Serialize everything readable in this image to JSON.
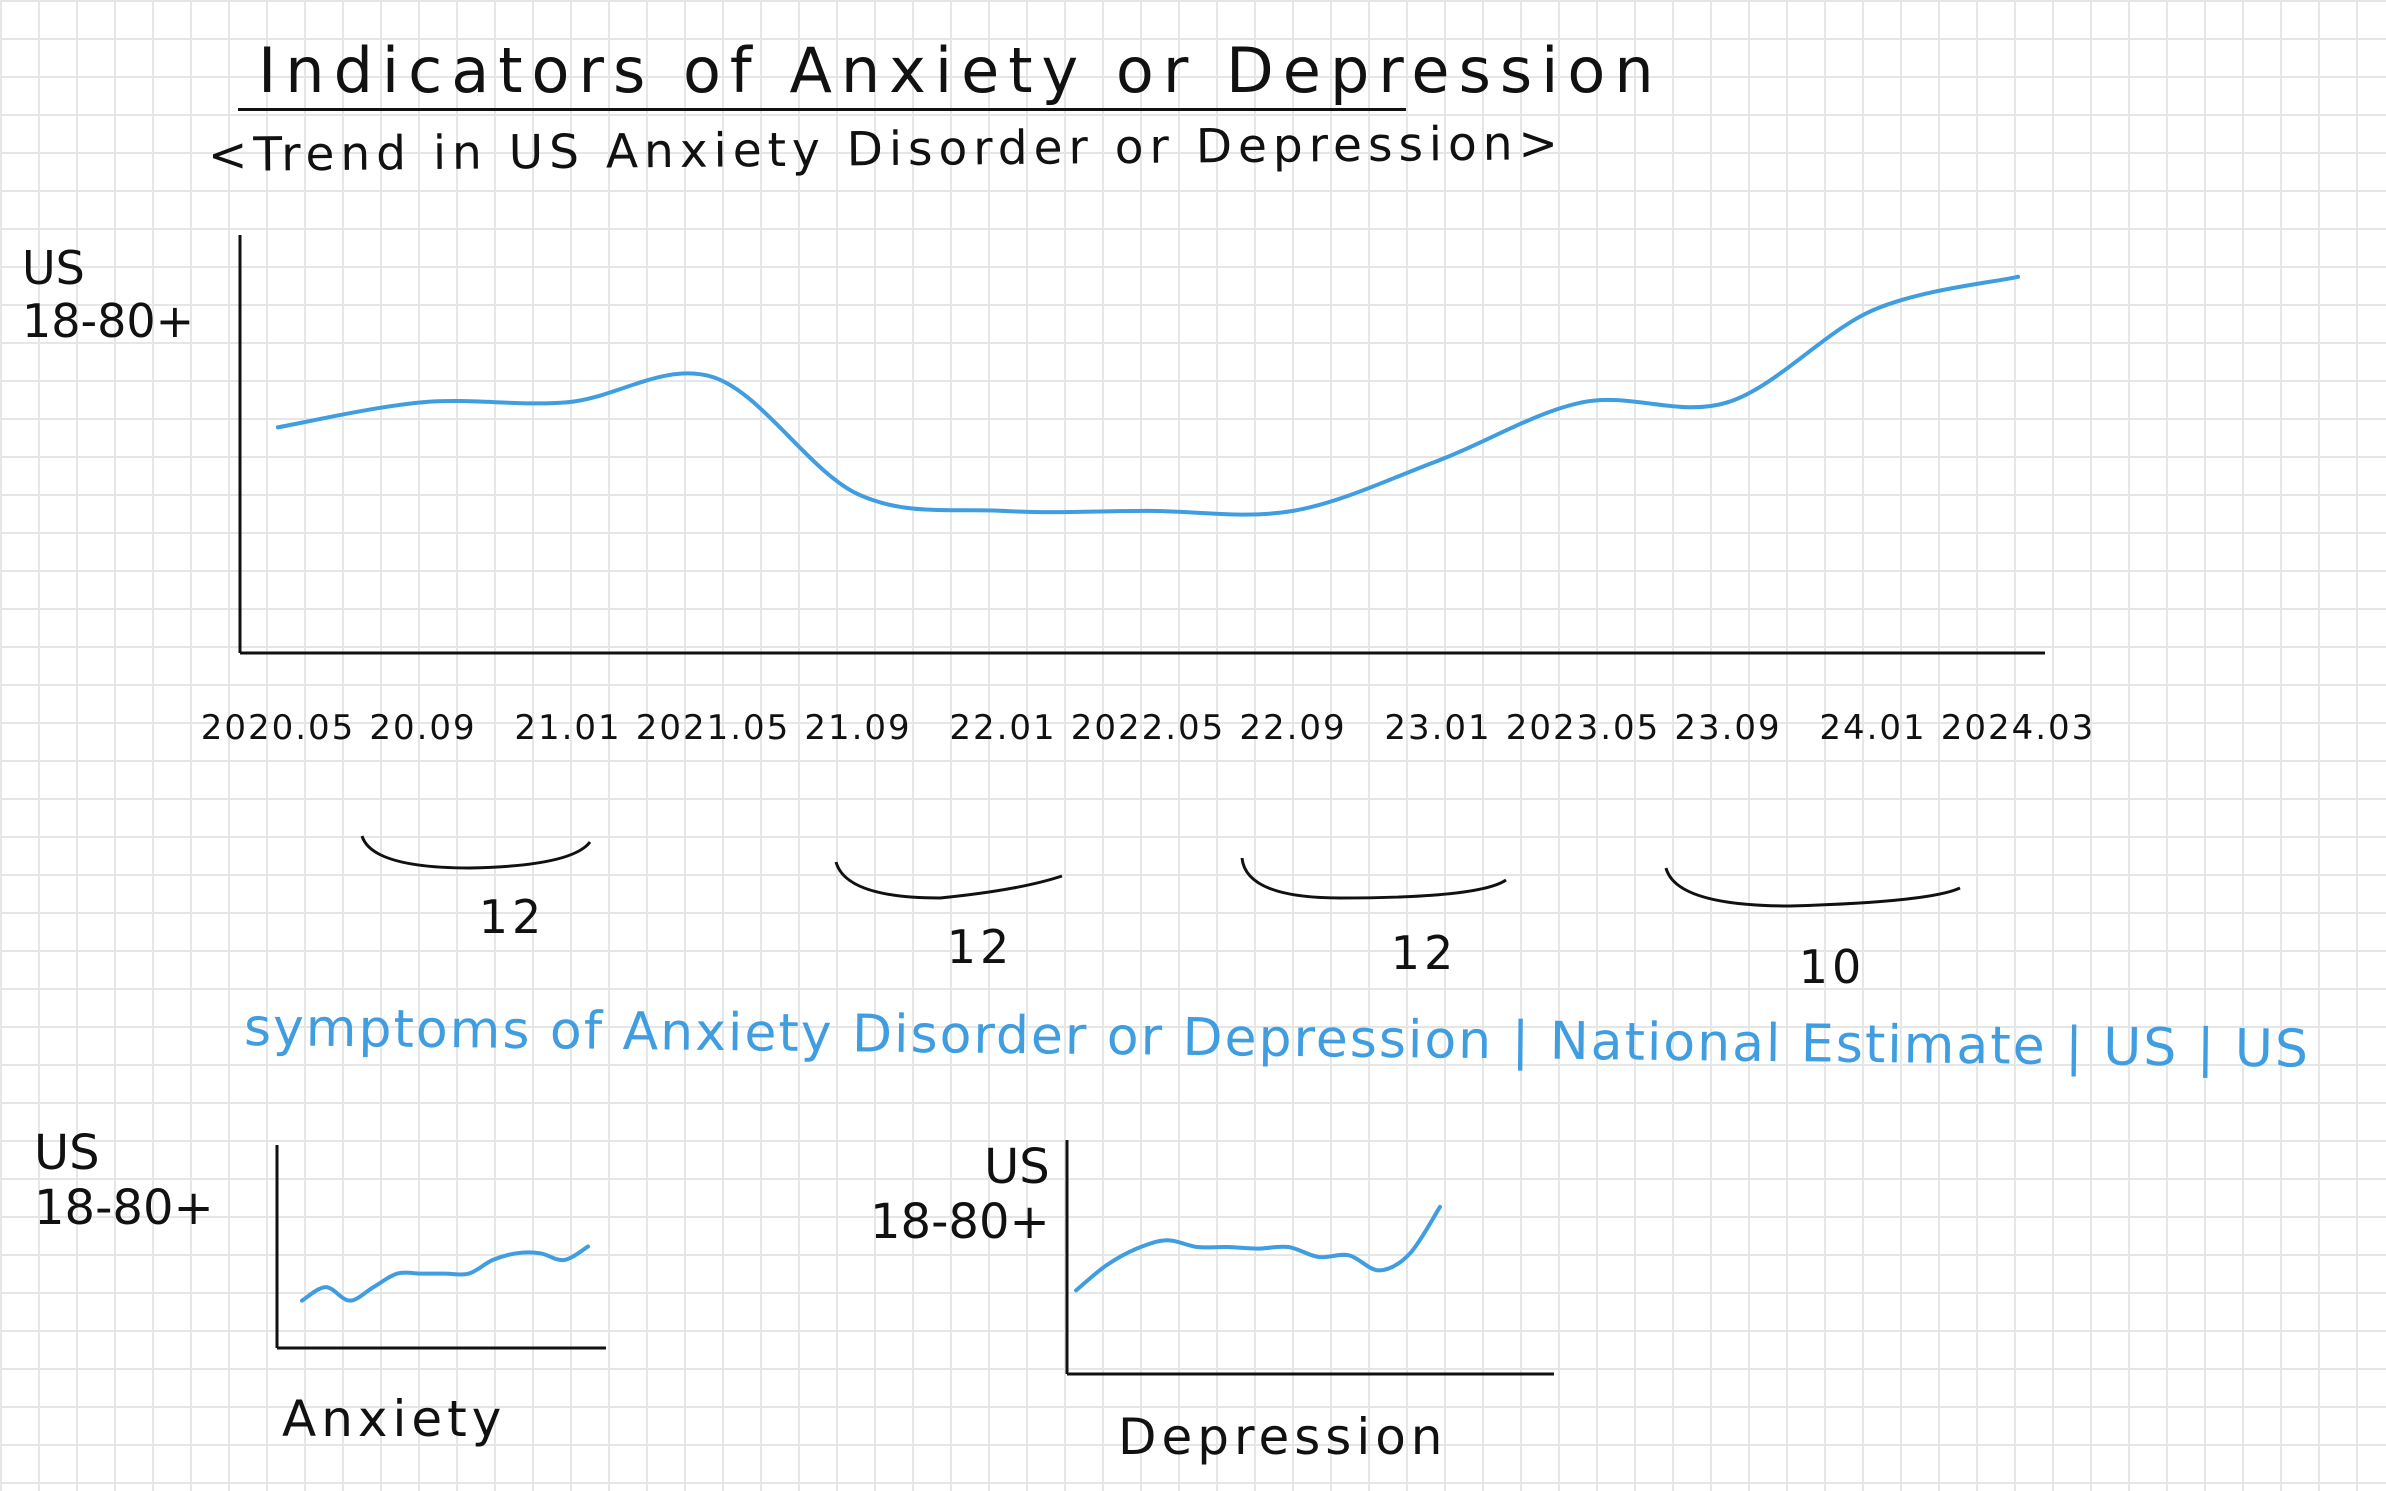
{
  "title": "Indicators of Anxiety or Depression",
  "subtitle": "<Trend in US Anxiety Disorder or Depression>",
  "colors": {
    "line": "#3f9de0",
    "ink": "#111111",
    "grid": "#e6e6e6"
  },
  "chart_data": [
    {
      "type": "line",
      "title": "<Trend in US Anxiety Disorder or Depression>",
      "ylabel": "US\n18-80+",
      "categories": [
        "2020.05",
        "20.09",
        "21.01",
        "2021.05",
        "21.09",
        "22.01",
        "2022.05",
        "22.09",
        "23.01",
        "2023.05",
        "23.09",
        "24.01",
        "2024.03"
      ],
      "series": [
        {
          "values": [
            47,
            50,
            50,
            53,
            39,
            37,
            37,
            37,
            43,
            50,
            50,
            61,
            65
          ]
        }
      ],
      "ylim": [
        20,
        70
      ],
      "grid": true,
      "interval_labels": [
        "12",
        "12",
        "12",
        "10"
      ],
      "caption": "symptoms of Anxiety Disorder or Depression | National Estimate | US | US"
    },
    {
      "type": "line",
      "ylabel": "US\n18-80+",
      "xlabel": "Anxiety",
      "values": [
        3.5,
        4.5,
        3.5,
        4.5,
        5.5,
        5.5,
        5.5,
        5.5,
        6.5,
        7,
        7,
        6.5,
        7.5
      ],
      "ylim": [
        0,
        15
      ]
    },
    {
      "type": "line",
      "ylabel": "US\n18-80+",
      "xlabel": "Depression",
      "values": [
        5,
        6.5,
        7.5,
        8,
        7.6,
        7.6,
        7.5,
        7.6,
        7,
        7.1,
        6.2,
        7.2,
        10
      ],
      "ylim": [
        0,
        14
      ]
    }
  ]
}
